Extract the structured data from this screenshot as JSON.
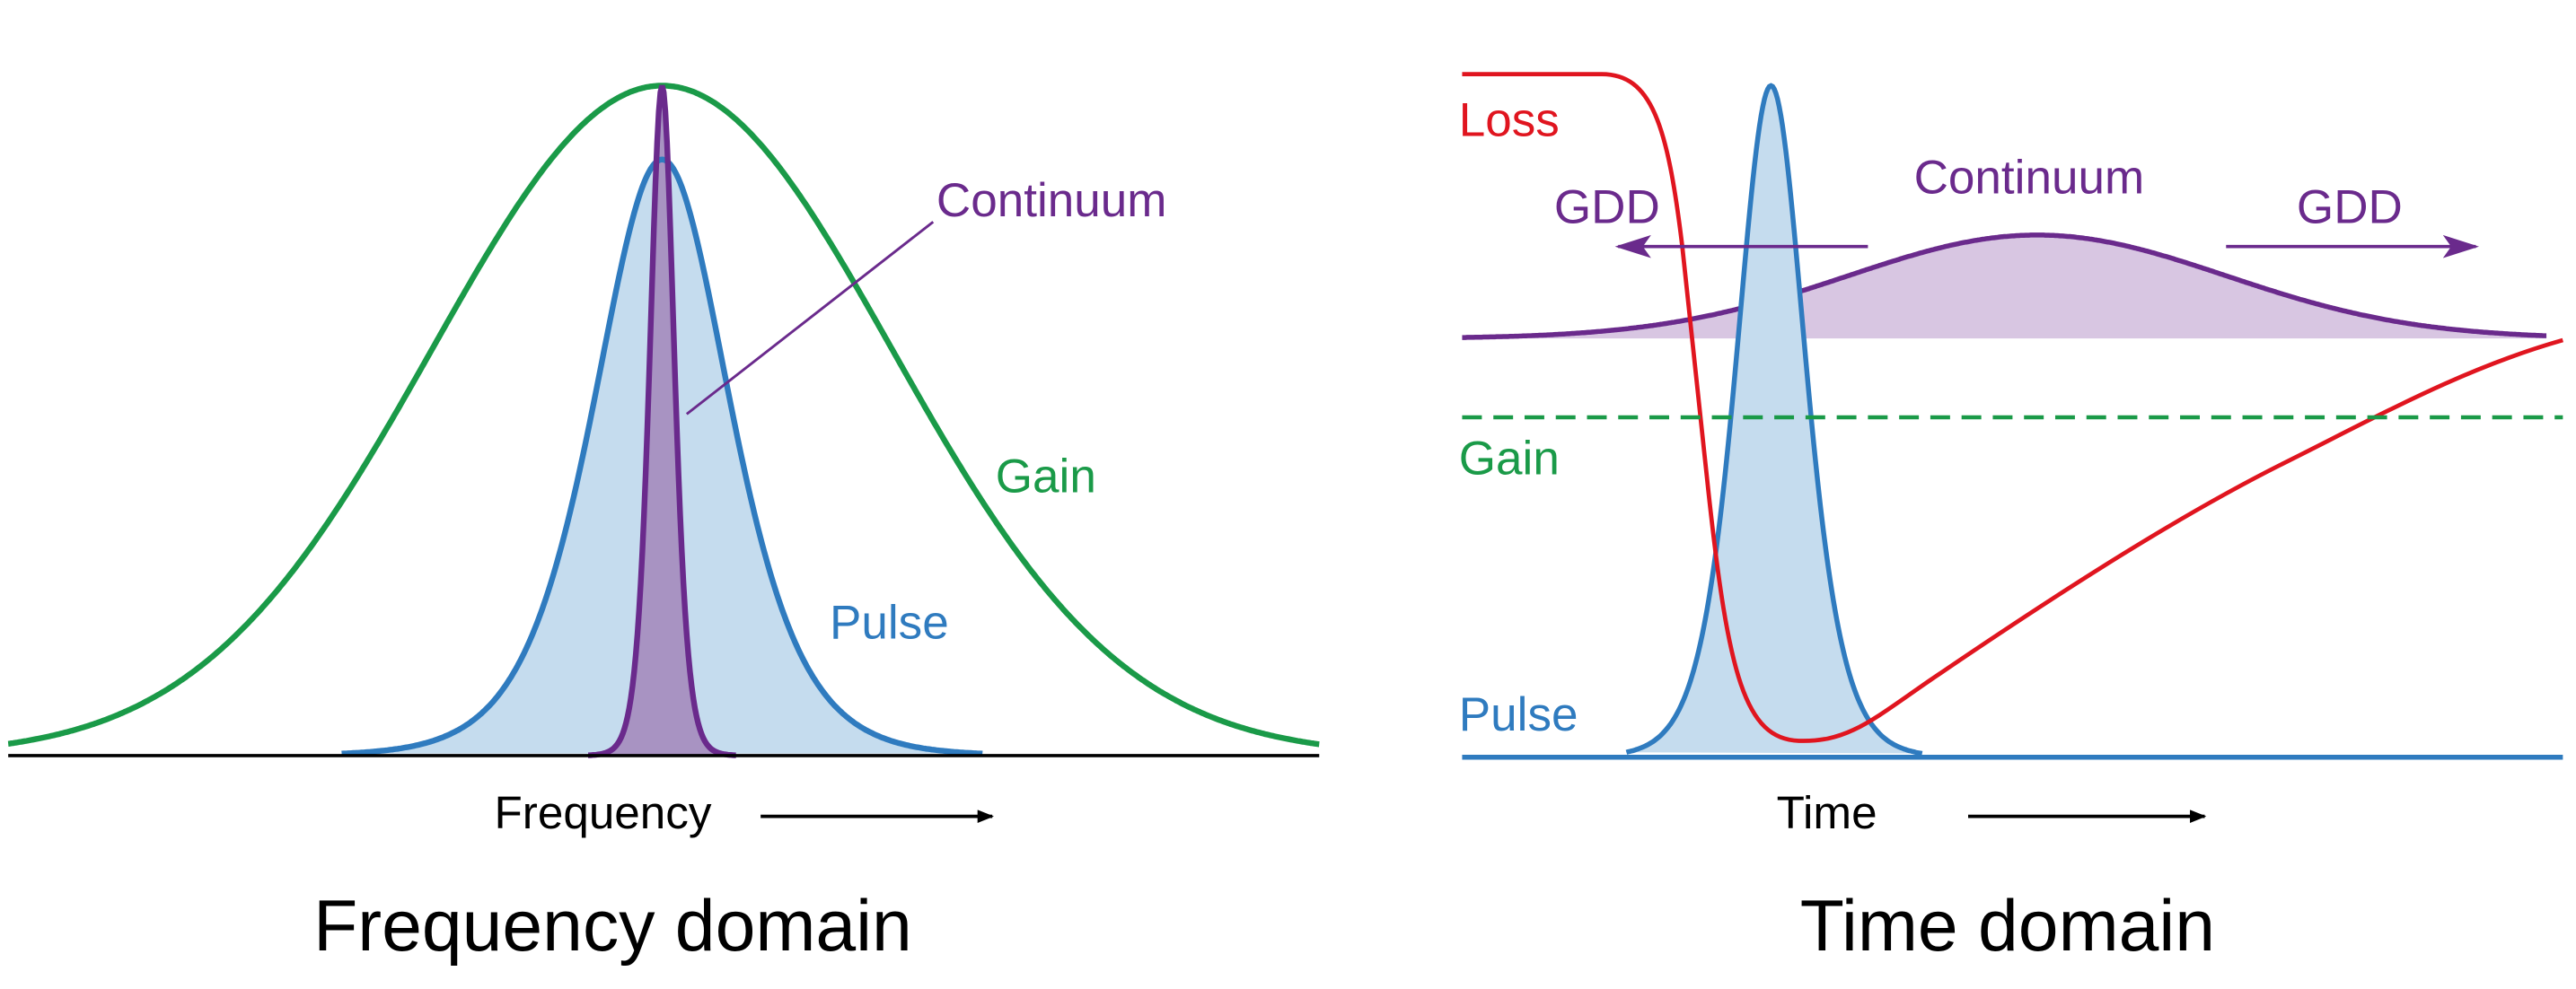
{
  "frequency_panel": {
    "title": "Frequency domain",
    "axis_label": "Frequency",
    "continuum_label": "Continuum",
    "gain_label": "Gain",
    "pulse_label": "Pulse"
  },
  "time_panel": {
    "title": "Time domain",
    "axis_label": "Time",
    "loss_label": "Loss",
    "gdd_left_label": "GDD",
    "continuum_label": "Continuum",
    "gdd_right_label": "GDD",
    "gain_label": "Gain",
    "pulse_label": "Pulse"
  }
}
